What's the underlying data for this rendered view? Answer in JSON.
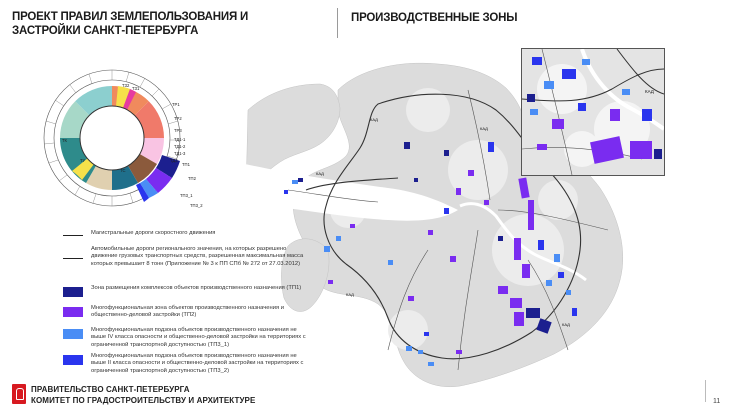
{
  "header": {
    "title": "ПРОЕКТ ПРАВИЛ ЗЕМЛЕПОЛЬЗОВАНИЯ И ЗАСТРОЙКИ САНКТ-ПЕТЕРБУРГА",
    "subtitle": "ПРОИЗВОДСТВЕННЫЕ ЗОНЫ"
  },
  "donut": {
    "labels": [
      "ТП1",
      "ТП2",
      "ТП3_1",
      "ТП3_2",
      "ТЗ2",
      "ТЗ1",
      "ТР1",
      "ТР2",
      "ТР3",
      "ТД1-1",
      "ТД1-2",
      "ТД1-3",
      "ТД3",
      "ТС",
      "ТУ",
      "ТК"
    ],
    "colors": {
      "tp1": "#1c1f8f",
      "tp2": "#7a2cf0",
      "tp3_1": "#4a8df5",
      "tp3_2": "#2a35ee",
      "residential": "#f08a5d",
      "business": "#f9c4e3",
      "recreation": "#2e8b8b",
      "transport": "#8b5a3c",
      "engineering": "#f6e14a",
      "social": "#e0d0b0"
    }
  },
  "legend": {
    "items": [
      {
        "kind": "line-thick",
        "text": "Магистральные дороги скоростного движения"
      },
      {
        "kind": "line",
        "text": "Автомобильные дороги регионального значения, на которых разрешено движение грузовых транспортных средств, разрешенная максимальная масса которых превышает 8 тонн (Приложение № 3 к ПП СПб № 272 от 27.03.2012)"
      },
      {
        "kind": "box",
        "color": "#1c1f8f",
        "text": "Зона размещения комплексов объектов производственного назначения (ТП1)"
      },
      {
        "kind": "box",
        "color": "#7a2cf0",
        "text": "Многофункциональная зона объектов производственного назначения и общественно-деловой застройки (ТП2)"
      },
      {
        "kind": "box",
        "color": "#4a8df5",
        "text": "Многофункциональная подзона объектов производственного назначения не выше IV класса опасности и общественно-деловой застройки на территориях с ограниченной транспортной доступностью (ТП3_1)"
      },
      {
        "kind": "box",
        "color": "#2a35ee",
        "text": "Многофункциональная подзона объектов производственного назначения не выше II класса опасности и общественно-деловой застройки на территориях с ограниченной транспортной доступностью (ТП3_2)"
      }
    ]
  },
  "map": {
    "road_labels": [
      "КАД",
      "КАД",
      "КАД",
      "КАД",
      "КАД"
    ]
  },
  "footer": {
    "line1": "ПРАВИТЕЛЬСТВО САНКТ-ПЕТЕРБУРГА",
    "line2": "КОМИТЕТ ПО ГРАДОСТРОИТЕЛЬСТВУ И АРХИТЕКТУРЕ",
    "page": "11"
  }
}
